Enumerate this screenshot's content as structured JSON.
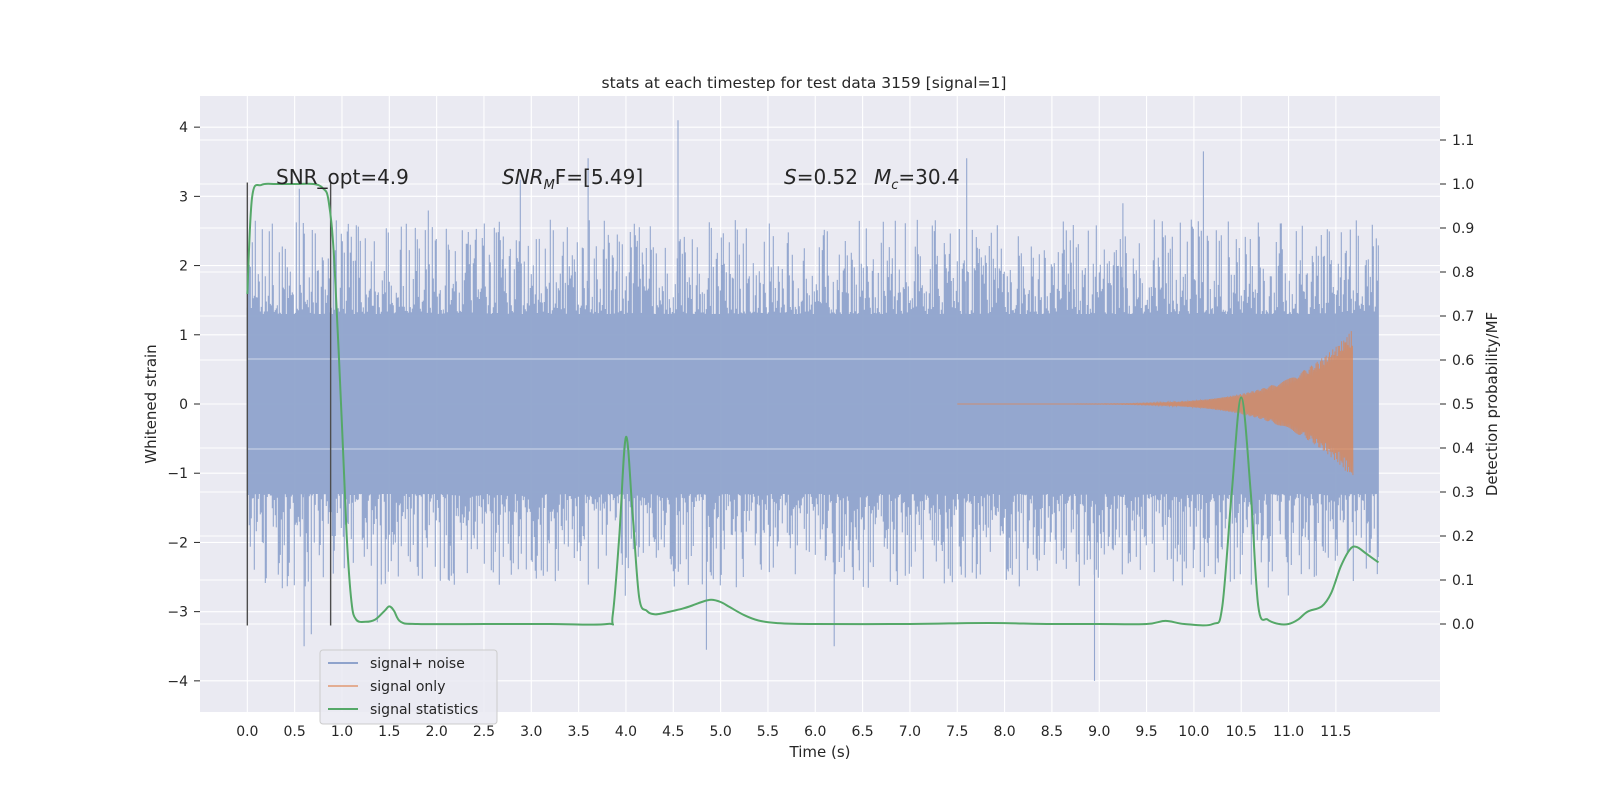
{
  "chart_data": {
    "type": "line",
    "title": "stats at each timestep for test data 3159 [signal=1]",
    "xlabel": "Time (s)",
    "ylabel": "Whitened strain",
    "ylabel_right": "Detection probability/MF",
    "xlim": [
      -0.5,
      12.6
    ],
    "ylim": [
      -4.45,
      4.45
    ],
    "ylim_right": [
      -0.2,
      1.2
    ],
    "x_ticks": [
      "0.0",
      "0.5",
      "1.0",
      "1.5",
      "2.0",
      "2.5",
      "3.0",
      "3.5",
      "4.0",
      "4.5",
      "5.0",
      "5.5",
      "6.0",
      "6.5",
      "7.0",
      "7.5",
      "8.0",
      "8.5",
      "9.0",
      "9.5",
      "10.0",
      "10.5",
      "11.0",
      "11.5"
    ],
    "y_ticks": [
      "4",
      "3",
      "2",
      "1",
      "0",
      "−1",
      "−2",
      "−3",
      "−4"
    ],
    "y_ticks_right": [
      "1.1",
      "1.0",
      "0.9",
      "0.8",
      "0.7",
      "0.6",
      "0.5",
      "0.4",
      "0.3",
      "0.2",
      "0.1",
      "0.0"
    ],
    "grid": true,
    "legend_position": "lower-left",
    "annotations": {
      "snr_opt": "SNR_opt=4.9",
      "snr_mf_label": "SNR",
      "snr_mf_sub": "M",
      "snr_mf_rest": "F=[5.49]",
      "s_label": "S",
      "s_value": "=0.52",
      "mc_label": "M",
      "mc_sub": "c",
      "mc_value": "=30.4"
    },
    "vlines": [
      0.0,
      0.88
    ],
    "series": [
      {
        "name": "signal+ noise",
        "color": "#8fa3cc",
        "x_range": [
          0.0,
          11.95
        ],
        "envelope": {
          "core_abs": 1.3,
          "typical_max": 2.6,
          "extreme_points": [
            [
              4.55,
              4.1
            ],
            [
              8.95,
              -4.0
            ],
            [
              9.25,
              2.9
            ],
            [
              10.1,
              3.65
            ],
            [
              4.85,
              -3.55
            ],
            [
              3.6,
              3.55
            ],
            [
              7.6,
              3.55
            ],
            [
              6.2,
              -3.5
            ],
            [
              0.6,
              -3.5
            ]
          ]
        }
      },
      {
        "name": "signal only",
        "color": "#dd8452",
        "chirp": {
          "start": 7.5,
          "end": 11.68,
          "peak_amplitude": 1.08
        }
      },
      {
        "name": "signal statistics",
        "color": "#55a868",
        "axis": "right",
        "points": [
          [
            0.0,
            0.75
          ],
          [
            0.05,
            0.97
          ],
          [
            0.15,
            0.998
          ],
          [
            0.3,
            1.0
          ],
          [
            0.5,
            1.0
          ],
          [
            0.7,
            1.0
          ],
          [
            0.8,
            0.99
          ],
          [
            0.86,
            0.96
          ],
          [
            0.92,
            0.82
          ],
          [
            1.0,
            0.45
          ],
          [
            1.05,
            0.2
          ],
          [
            1.1,
            0.05
          ],
          [
            1.15,
            0.01
          ],
          [
            1.25,
            0.005
          ],
          [
            1.35,
            0.01
          ],
          [
            1.45,
            0.03
          ],
          [
            1.5,
            0.04
          ],
          [
            1.55,
            0.03
          ],
          [
            1.62,
            0.005
          ],
          [
            1.8,
            0.0
          ],
          [
            2.5,
            0.0
          ],
          [
            3.2,
            0.0
          ],
          [
            3.8,
            0.0
          ],
          [
            3.86,
            0.02
          ],
          [
            3.93,
            0.2
          ],
          [
            4.0,
            0.425
          ],
          [
            4.07,
            0.25
          ],
          [
            4.14,
            0.06
          ],
          [
            4.22,
            0.03
          ],
          [
            4.3,
            0.022
          ],
          [
            4.4,
            0.025
          ],
          [
            4.5,
            0.03
          ],
          [
            4.6,
            0.035
          ],
          [
            4.7,
            0.042
          ],
          [
            4.8,
            0.05
          ],
          [
            4.9,
            0.055
          ],
          [
            5.0,
            0.05
          ],
          [
            5.1,
            0.038
          ],
          [
            5.25,
            0.02
          ],
          [
            5.4,
            0.008
          ],
          [
            5.6,
            0.002
          ],
          [
            6.0,
            0.0
          ],
          [
            7.0,
            0.0
          ],
          [
            7.6,
            0.002
          ],
          [
            8.0,
            0.002
          ],
          [
            8.5,
            0.0
          ],
          [
            9.0,
            0.0
          ],
          [
            9.5,
            0.0
          ],
          [
            9.7,
            0.007
          ],
          [
            9.9,
            0.0
          ],
          [
            10.2,
            0.0
          ],
          [
            10.3,
            0.04
          ],
          [
            10.4,
            0.3
          ],
          [
            10.5,
            0.515
          ],
          [
            10.6,
            0.3
          ],
          [
            10.68,
            0.04
          ],
          [
            10.78,
            0.01
          ],
          [
            10.9,
            0.0
          ],
          [
            11.0,
            0.0
          ],
          [
            11.1,
            0.01
          ],
          [
            11.2,
            0.028
          ],
          [
            11.35,
            0.04
          ],
          [
            11.45,
            0.07
          ],
          [
            11.55,
            0.13
          ],
          [
            11.65,
            0.17
          ],
          [
            11.72,
            0.175
          ],
          [
            11.82,
            0.16
          ],
          [
            11.95,
            0.14
          ]
        ]
      }
    ]
  }
}
